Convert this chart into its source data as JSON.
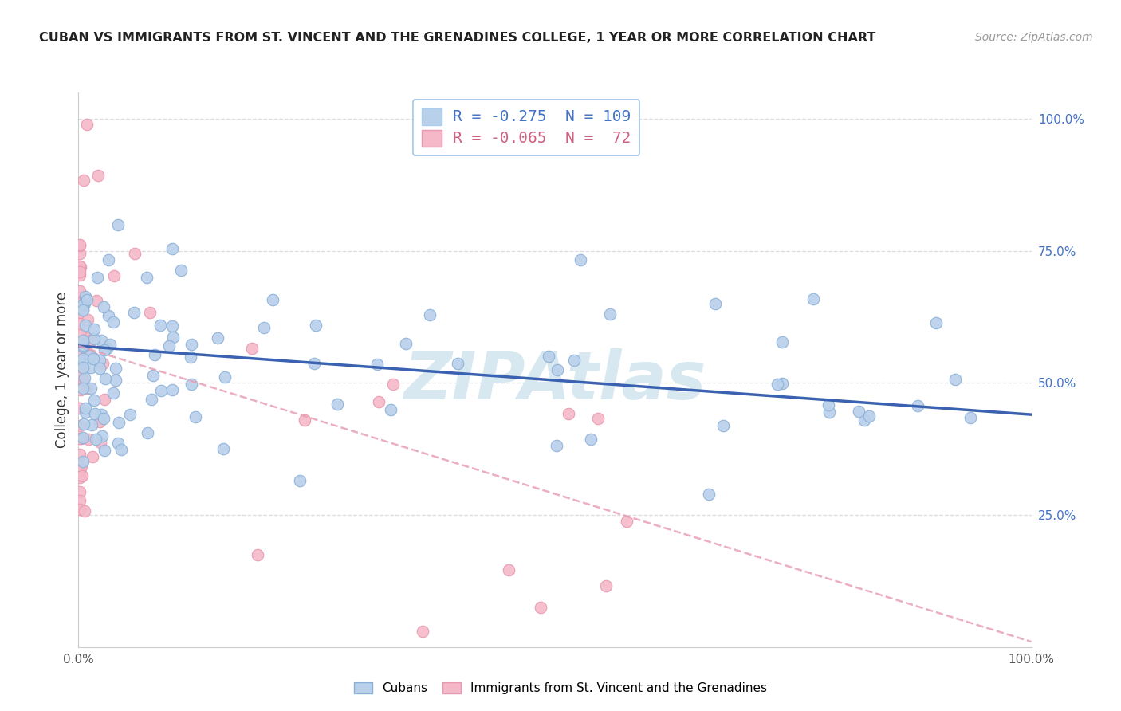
{
  "title": "CUBAN VS IMMIGRANTS FROM ST. VINCENT AND THE GRENADINES COLLEGE, 1 YEAR OR MORE CORRELATION CHART",
  "source": "Source: ZipAtlas.com",
  "ylabel": "College, 1 year or more",
  "blue_scatter_color": "#b8d0ea",
  "pink_scatter_color": "#f4b8c8",
  "blue_edge_color": "#8ab0d8",
  "pink_edge_color": "#e898b0",
  "blue_line_color": "#3a62b0",
  "pink_line_color": "#e8a0b8",
  "watermark": "ZIPAtlas",
  "watermark_color": "#d8e8f0",
  "legend_label_cubans": "Cubans",
  "legend_label_svg": "Immigrants from St. Vincent and the Grenadines",
  "R_blue": -0.275,
  "N_blue": 109,
  "R_pink": -0.065,
  "N_pink": 72,
  "blue_intercept": 0.57,
  "blue_slope": -0.13,
  "pink_intercept": 0.57,
  "pink_slope": -0.56,
  "ytick_right": [
    "25.0%",
    "50.0%",
    "75.0%",
    "100.0%"
  ],
  "ytick_right_vals": [
    0.25,
    0.5,
    0.75,
    1.0
  ],
  "grid_color": "#dddddd",
  "axis_color": "#cccccc",
  "title_color": "#222222",
  "source_color": "#999999",
  "ylabel_color": "#333333",
  "right_tick_color": "#4472c4",
  "legend_entry_colors": [
    "#4472c4",
    "#d06080"
  ],
  "legend_entry_labels": [
    "R = -0.275  N = 109",
    "R = -0.065  N =  72"
  ],
  "legend_patch_colors": [
    "#b8d0ea",
    "#f4b8c8"
  ],
  "legend_box_edge": "#aaccee"
}
